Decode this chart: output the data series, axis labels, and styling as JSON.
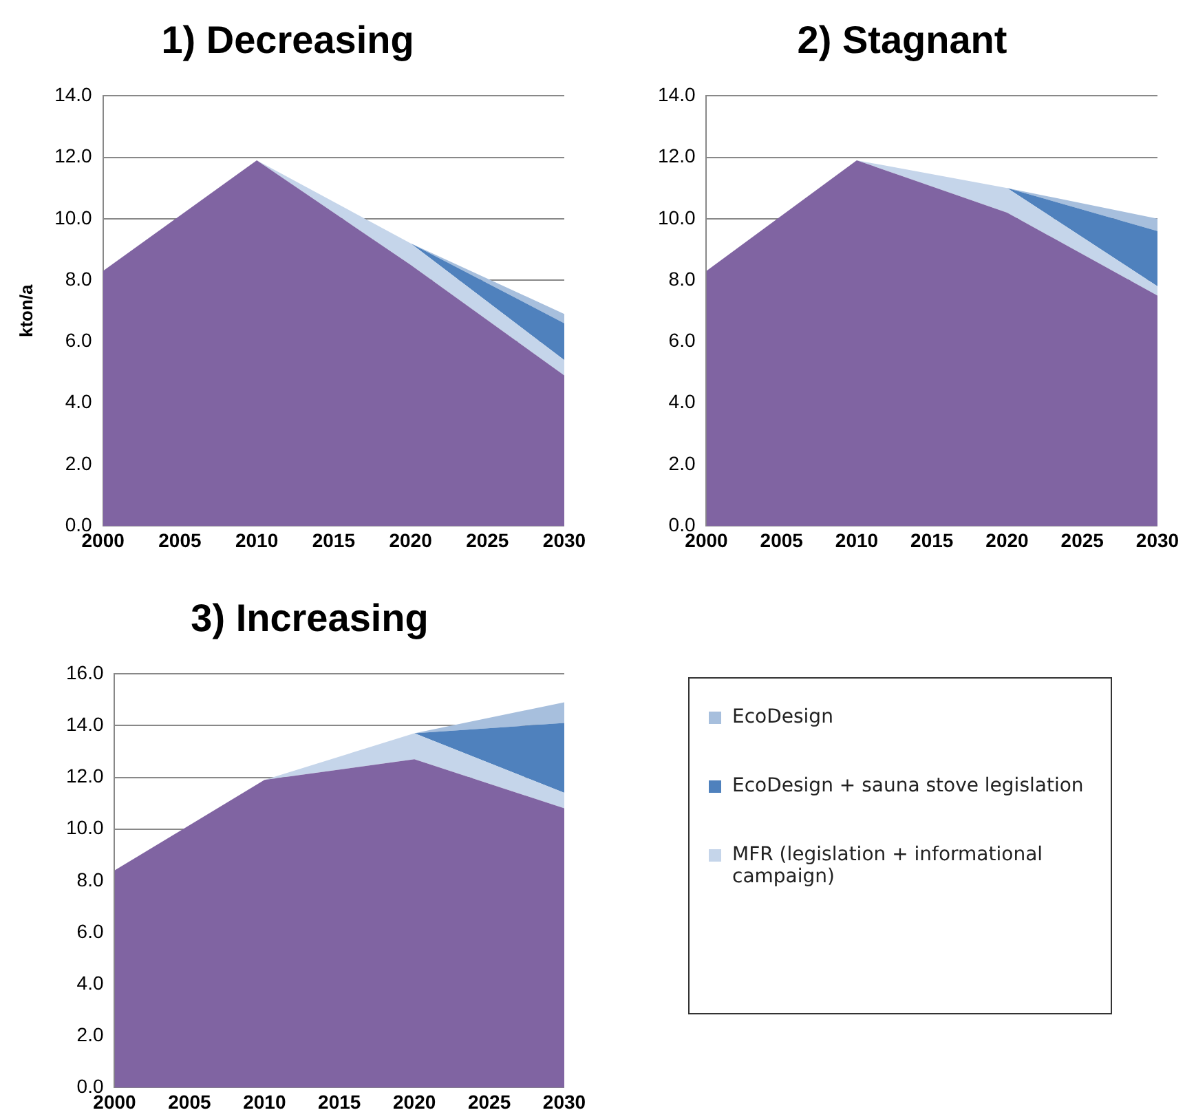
{
  "chart_data": [
    {
      "type": "area",
      "title": "1) Decreasing",
      "ylabel": "kton/a",
      "stacked": true,
      "grid": "y",
      "x": [
        2000,
        2010,
        2020,
        2030
      ],
      "xlim": [
        2000,
        2030
      ],
      "xticks": [
        2000,
        2005,
        2010,
        2015,
        2020,
        2025,
        2030
      ],
      "ylim": [
        0,
        14
      ],
      "yticks": [
        {
          "value": 0,
          "label": "0.0"
        },
        {
          "value": 2,
          "label": "2.0"
        },
        {
          "value": 4,
          "label": "4.0"
        },
        {
          "value": 6,
          "label": "6.0"
        },
        {
          "value": 8,
          "label": "8.0"
        },
        {
          "value": 10,
          "label": "10.0"
        },
        {
          "value": 12,
          "label": "12.0"
        },
        {
          "value": 14,
          "label": "14.0"
        }
      ],
      "series": [
        {
          "color": "#8064a2",
          "values": [
            8.3,
            11.9,
            8.5,
            4.9
          ]
        },
        {
          "color": "#c5d5ea",
          "values": [
            0,
            0,
            0.7,
            0.5
          ]
        },
        {
          "color": "#4f81bd",
          "values": [
            0,
            0,
            0,
            1.2
          ]
        },
        {
          "color": "#a7bfdd",
          "values": [
            0,
            0,
            0,
            0.3
          ]
        }
      ]
    },
    {
      "type": "area",
      "title": "2) Stagnant",
      "stacked": true,
      "grid": "y",
      "x": [
        2000,
        2010,
        2020,
        2030
      ],
      "xlim": [
        2000,
        2030
      ],
      "xticks": [
        2000,
        2005,
        2010,
        2015,
        2020,
        2025,
        2030
      ],
      "ylim": [
        0,
        14
      ],
      "yticks": [
        {
          "value": 0,
          "label": "0.0"
        },
        {
          "value": 2,
          "label": "2.0"
        },
        {
          "value": 4,
          "label": "4.0"
        },
        {
          "value": 6,
          "label": "6.0"
        },
        {
          "value": 8,
          "label": "8.0"
        },
        {
          "value": 10,
          "label": "10.0"
        },
        {
          "value": 12,
          "label": "12.0"
        },
        {
          "value": 14,
          "label": "14.0"
        }
      ],
      "series": [
        {
          "color": "#8064a2",
          "values": [
            8.3,
            11.9,
            10.2,
            7.5
          ]
        },
        {
          "color": "#c5d5ea",
          "values": [
            0,
            0,
            0.8,
            0.3
          ]
        },
        {
          "color": "#4f81bd",
          "values": [
            0,
            0,
            0,
            1.8
          ]
        },
        {
          "color": "#a7bfdd",
          "values": [
            0,
            0,
            0,
            0.4
          ]
        }
      ]
    },
    {
      "type": "area",
      "title": "3) Increasing",
      "stacked": true,
      "grid": "y",
      "legend": "right",
      "x": [
        2000,
        2010,
        2020,
        2030
      ],
      "xlim": [
        2000,
        2030
      ],
      "xticks": [
        2000,
        2005,
        2010,
        2015,
        2020,
        2025,
        2030
      ],
      "ylim": [
        0,
        16
      ],
      "yticks": [
        {
          "value": 0,
          "label": "0.0"
        },
        {
          "value": 2,
          "label": "2.0"
        },
        {
          "value": 4,
          "label": "4.0"
        },
        {
          "value": 6,
          "label": "6.0"
        },
        {
          "value": 8,
          "label": "8.0"
        },
        {
          "value": 10,
          "label": "10.0"
        },
        {
          "value": 12,
          "label": "12.0"
        },
        {
          "value": 14,
          "label": "14.0"
        },
        {
          "value": 16,
          "label": "16.0"
        }
      ],
      "series": [
        {
          "color": "#8064a2",
          "values": [
            8.4,
            11.9,
            12.7,
            10.8
          ]
        },
        {
          "name": "MFR (legislation + informational campaign)",
          "color": "#c5d5ea",
          "values": [
            0,
            0,
            1.0,
            0.6
          ]
        },
        {
          "name": "EcoDesign + sauna stove legislation",
          "color": "#4f81bd",
          "values": [
            0,
            0,
            0,
            2.7
          ]
        },
        {
          "name": "EcoDesign",
          "color": "#a7bfdd",
          "values": [
            0,
            0,
            0,
            0.8
          ]
        }
      ]
    }
  ]
}
